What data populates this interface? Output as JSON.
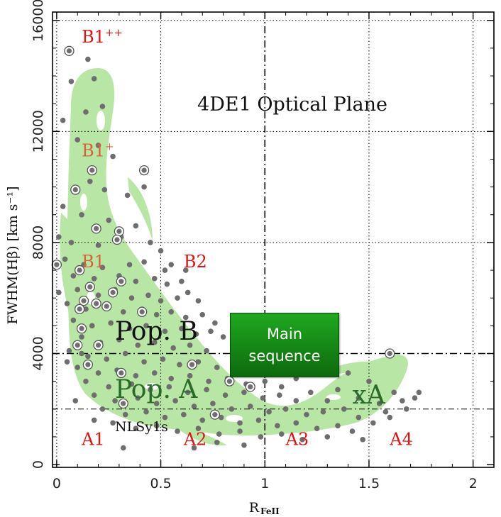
{
  "chart_data": {
    "type": "scatter",
    "title": "4DE1 Optical Plane",
    "xlabel": "R",
    "xlabel_sub": "FeII",
    "ylabel": "FWHM(Hβ) [km s⁻¹]",
    "xlim": [
      -0.02,
      2.1
    ],
    "ylim": [
      -100,
      16300
    ],
    "x_ticks": [
      0,
      0.5,
      1,
      1.5,
      2
    ],
    "x_tick_labels": [
      "0",
      "0.5",
      "1",
      "1.5",
      "2"
    ],
    "y_ticks": [
      0,
      4000,
      8000,
      12000,
      16000
    ],
    "y_tick_labels": [
      "0",
      "4000",
      "8000",
      "12000",
      "16000"
    ],
    "grid": "dotted",
    "dividers": {
      "x": 1.0,
      "y": 4000,
      "y_secondary": 2000
    },
    "region_labels": [
      {
        "text": "B1",
        "sup": "++",
        "x": 0.12,
        "y": 15200,
        "color": "#e01414"
      },
      {
        "text": "B1",
        "sup": "+",
        "x": 0.12,
        "y": 11100,
        "color": "#d8623a"
      },
      {
        "text": "B1",
        "sup": "",
        "x": 0.12,
        "y": 7100,
        "color": "#d8623a"
      },
      {
        "text": "B2",
        "sup": "",
        "x": 0.61,
        "y": 7100,
        "color": "#e01414"
      },
      {
        "text": "A1",
        "sup": "",
        "x": 0.12,
        "y": 700,
        "color": "#e01414"
      },
      {
        "text": "A2",
        "sup": "",
        "x": 0.61,
        "y": 700,
        "color": "#e01414"
      },
      {
        "text": "A3",
        "sup": "",
        "x": 1.1,
        "y": 700,
        "color": "#e01414"
      },
      {
        "text": "A4",
        "sup": "",
        "x": 1.6,
        "y": 700,
        "color": "#e01414"
      }
    ],
    "annotations": [
      {
        "text": "Pop. B",
        "x": 0.28,
        "y": 4500,
        "size": 36,
        "color": "#111111"
      },
      {
        "text": "Pop. A",
        "x": 0.28,
        "y": 2400,
        "size": 36,
        "color": "#2a6b2a"
      },
      {
        "text": "xA",
        "x": 1.42,
        "y": 2200,
        "size": 36,
        "color": "#2a6b2a"
      },
      {
        "text": "NLSy1s",
        "x": 0.28,
        "y": 1200,
        "size": 19,
        "color": "#111111"
      }
    ],
    "main_sequence_lines": [
      "Main",
      "sequence"
    ],
    "colors": {
      "contour": "#b8e6a4",
      "points": "#6e6e6e",
      "ring": "#555555",
      "text_red": "#e01414"
    },
    "series": [
      {
        "marker": "filled circle",
        "points": [
          [
            0.03,
            12400
          ],
          [
            0.07,
            13800
          ],
          [
            0.15,
            14600
          ],
          [
            0.18,
            13900
          ],
          [
            0.22,
            12900
          ],
          [
            0.14,
            12700
          ],
          [
            0.1,
            11700
          ],
          [
            0.2,
            11500
          ],
          [
            0.27,
            11100
          ],
          [
            0.16,
            10200
          ],
          [
            0.23,
            9900
          ],
          [
            0.34,
            9700
          ],
          [
            0.42,
            10000
          ],
          [
            0.03,
            9300
          ],
          [
            0.12,
            9000
          ],
          [
            0.25,
            8800
          ],
          [
            0.38,
            8600
          ],
          [
            0.01,
            8200
          ],
          [
            0.07,
            8000
          ],
          [
            0.2,
            7900
          ],
          [
            0.31,
            8200
          ],
          [
            0.45,
            8000
          ],
          [
            0.5,
            7700
          ],
          [
            0.04,
            7400
          ],
          [
            0.13,
            7200
          ],
          [
            0.22,
            7100
          ],
          [
            0.35,
            7200
          ],
          [
            0.42,
            7300
          ],
          [
            0.52,
            7000
          ],
          [
            0.55,
            7200
          ],
          [
            0.62,
            7000
          ],
          [
            0.08,
            6800
          ],
          [
            0.18,
            6700
          ],
          [
            0.3,
            6800
          ],
          [
            0.38,
            6600
          ],
          [
            0.47,
            6700
          ],
          [
            0.53,
            6500
          ],
          [
            0.6,
            6600
          ],
          [
            0.01,
            6200
          ],
          [
            0.1,
            6300
          ],
          [
            0.2,
            6100
          ],
          [
            0.28,
            6300
          ],
          [
            0.36,
            6000
          ],
          [
            0.44,
            6100
          ],
          [
            0.5,
            5900
          ],
          [
            0.58,
            6000
          ],
          [
            0.63,
            6200
          ],
          [
            0.68,
            5900
          ],
          [
            0.05,
            5800
          ],
          [
            0.14,
            5600
          ],
          [
            0.23,
            5700
          ],
          [
            0.32,
            5500
          ],
          [
            0.41,
            5600
          ],
          [
            0.48,
            5400
          ],
          [
            0.55,
            5500
          ],
          [
            0.62,
            5300
          ],
          [
            0.7,
            5400
          ],
          [
            0.76,
            5100
          ],
          [
            0.08,
            5200
          ],
          [
            0.17,
            5000
          ],
          [
            0.26,
            5100
          ],
          [
            0.35,
            4900
          ],
          [
            0.43,
            5000
          ],
          [
            0.52,
            4800
          ],
          [
            0.6,
            4900
          ],
          [
            0.67,
            4700
          ],
          [
            0.74,
            4800
          ],
          [
            0.8,
            4600
          ],
          [
            0.12,
            4600
          ],
          [
            0.21,
            4400
          ],
          [
            0.3,
            4500
          ],
          [
            0.39,
            4300
          ],
          [
            0.47,
            4400
          ],
          [
            0.56,
            4200
          ],
          [
            0.64,
            4300
          ],
          [
            0.72,
            4100
          ],
          [
            0.85,
            4200
          ],
          [
            0.06,
            4100
          ],
          [
            0.15,
            3900
          ],
          [
            0.24,
            3800
          ],
          [
            0.33,
            4000
          ],
          [
            0.42,
            3700
          ],
          [
            0.51,
            3800
          ],
          [
            0.59,
            3600
          ],
          [
            0.68,
            3700
          ],
          [
            0.77,
            3500
          ],
          [
            0.86,
            3600
          ],
          [
            0.94,
            3400
          ],
          [
            0.1,
            3500
          ],
          [
            0.2,
            3300
          ],
          [
            0.29,
            3400
          ],
          [
            0.38,
            3200
          ],
          [
            0.47,
            3300
          ],
          [
            0.55,
            3100
          ],
          [
            0.64,
            3200
          ],
          [
            0.73,
            3000
          ],
          [
            0.82,
            3100
          ],
          [
            0.91,
            2900
          ],
          [
            1.0,
            3000
          ],
          [
            1.08,
            2800
          ],
          [
            0.14,
            3000
          ],
          [
            0.25,
            2800
          ],
          [
            0.36,
            2900
          ],
          [
            0.45,
            2700
          ],
          [
            0.54,
            2800
          ],
          [
            0.63,
            2600
          ],
          [
            0.72,
            2700
          ],
          [
            0.81,
            2500
          ],
          [
            0.9,
            2600
          ],
          [
            0.99,
            2400
          ],
          [
            1.07,
            2500
          ],
          [
            1.15,
            2300
          ],
          [
            0.18,
            2500
          ],
          [
            0.28,
            2300
          ],
          [
            0.39,
            2400
          ],
          [
            0.48,
            2200
          ],
          [
            0.57,
            2300
          ],
          [
            0.66,
            2100
          ],
          [
            0.75,
            2200
          ],
          [
            0.84,
            2000
          ],
          [
            0.93,
            2100
          ],
          [
            1.02,
            1900
          ],
          [
            1.1,
            2000
          ],
          [
            1.2,
            1800
          ],
          [
            1.28,
            1900
          ],
          [
            0.22,
            2000
          ],
          [
            0.33,
            1800
          ],
          [
            0.43,
            1900
          ],
          [
            0.52,
            1700
          ],
          [
            0.61,
            1800
          ],
          [
            0.7,
            1600
          ],
          [
            0.79,
            1700
          ],
          [
            0.88,
            1500
          ],
          [
            0.97,
            1600
          ],
          [
            1.06,
            1400
          ],
          [
            1.15,
            1500
          ],
          [
            1.25,
            1300
          ],
          [
            1.35,
            1400
          ],
          [
            0.27,
            1500
          ],
          [
            0.38,
            1300
          ],
          [
            0.48,
            1400
          ],
          [
            0.58,
            1200
          ],
          [
            0.68,
            1300
          ],
          [
            0.78,
            1100
          ],
          [
            0.88,
            1200
          ],
          [
            0.98,
            1000
          ],
          [
            1.08,
            1100
          ],
          [
            1.18,
            900
          ],
          [
            1.3,
            1000
          ],
          [
            1.42,
            1200
          ],
          [
            1.05,
            3400
          ],
          [
            1.15,
            3100
          ],
          [
            1.22,
            2600
          ],
          [
            1.3,
            2300
          ],
          [
            1.38,
            2000
          ],
          [
            1.45,
            1700
          ],
          [
            1.52,
            1500
          ],
          [
            1.6,
            1700
          ],
          [
            1.68,
            2000
          ],
          [
            1.72,
            2400
          ],
          [
            1.35,
            2700
          ],
          [
            1.45,
            2400
          ],
          [
            1.55,
            2200
          ],
          [
            1.62,
            2600
          ],
          [
            1.5,
            3000
          ],
          [
            1.4,
            3300
          ],
          [
            1.3,
            3500
          ],
          [
            1.2,
            3700
          ],
          [
            1.58,
            1900
          ],
          [
            1.66,
            2300
          ],
          [
            0.66,
            600
          ],
          [
            0.77,
            800
          ],
          [
            0.32,
            600
          ],
          [
            0.9,
            700
          ],
          [
            1.47,
            900
          ],
          [
            1.74,
            2600
          ],
          [
            0.09,
            2300
          ],
          [
            0.18,
            1600
          ],
          [
            0.05,
            3700
          ],
          [
            0.12,
            4000
          ]
        ]
      },
      {
        "marker": "ringed circle",
        "points": [
          [
            0.06,
            14900
          ],
          [
            0.42,
            10600
          ],
          [
            0.17,
            10600
          ],
          [
            0.09,
            9900
          ],
          [
            0.19,
            8500
          ],
          [
            0.3,
            8400
          ],
          [
            0.29,
            8100
          ],
          [
            0.0,
            7200
          ],
          [
            0.11,
            7000
          ],
          [
            0.31,
            6600
          ],
          [
            0.16,
            6400
          ],
          [
            0.27,
            6200
          ],
          [
            0.13,
            5900
          ],
          [
            0.19,
            5800
          ],
          [
            0.24,
            5700
          ],
          [
            0.11,
            5600
          ],
          [
            0.41,
            5500
          ],
          [
            0.12,
            4900
          ],
          [
            0.1,
            4300
          ],
          [
            0.2,
            4300
          ],
          [
            0.15,
            3600
          ],
          [
            0.31,
            3300
          ],
          [
            0.65,
            3600
          ],
          [
            0.83,
            3000
          ],
          [
            0.93,
            2800
          ],
          [
            0.32,
            2200
          ],
          [
            0.76,
            1800
          ],
          [
            1.6,
            4000
          ]
        ]
      }
    ]
  }
}
